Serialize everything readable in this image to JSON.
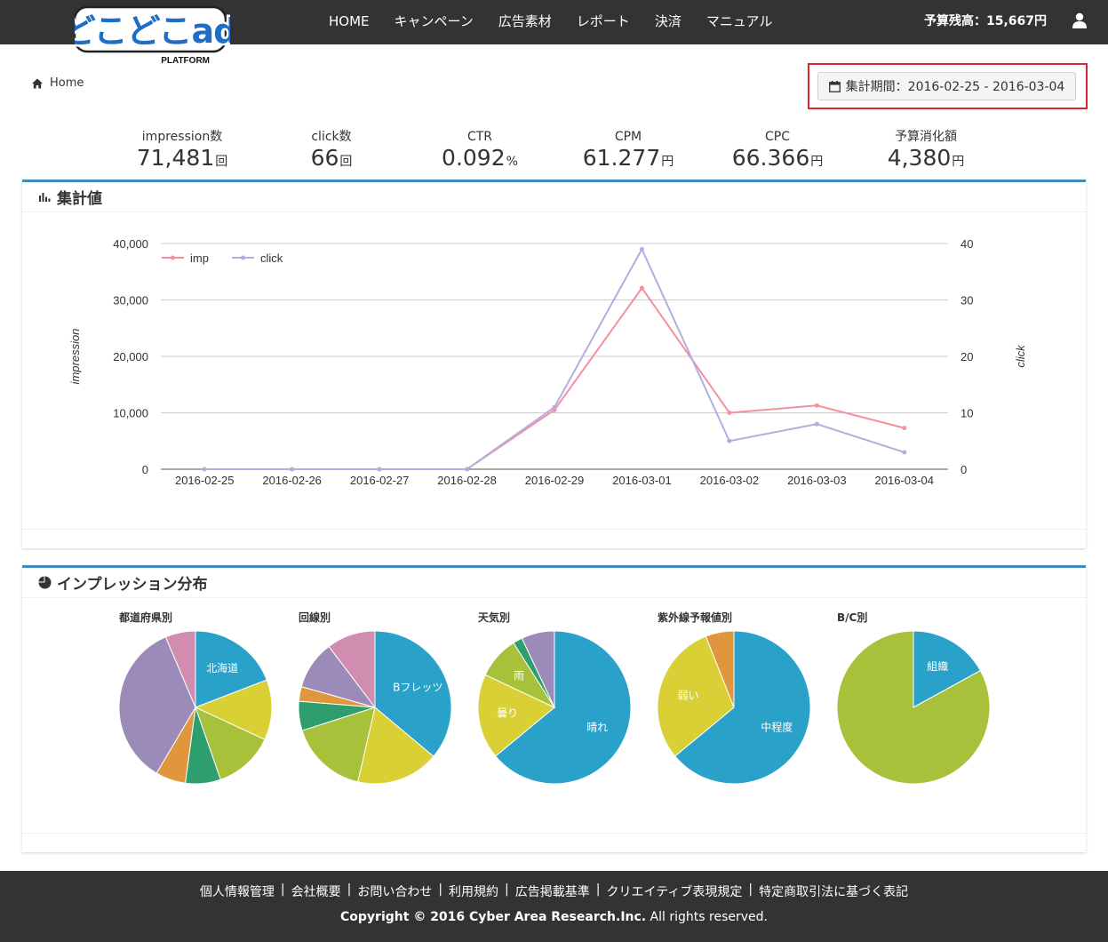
{
  "logo": {
    "main": "どこどこad",
    "sub": "PLATFORM"
  },
  "nav": {
    "items": [
      "HOME",
      "キャンペーン",
      "広告素材",
      "レポート",
      "決済",
      "マニュアル"
    ],
    "budget": "予算残高：15,667円"
  },
  "breadcrumb": {
    "home": "Home"
  },
  "date_range": {
    "label": "集計期間：2016-02-25 - 2016-03-04"
  },
  "stats": [
    {
      "label": "impression数",
      "value": "71,481",
      "unit": "回"
    },
    {
      "label": "click数",
      "value": "66",
      "unit": "回"
    },
    {
      "label": "CTR",
      "value": "0.092",
      "unit": "%"
    },
    {
      "label": "CPM",
      "value": "61.277",
      "unit": "円"
    },
    {
      "label": "CPC",
      "value": "66.366",
      "unit": "円"
    },
    {
      "label": "予算消化額",
      "value": "4,380",
      "unit": "円"
    }
  ],
  "summary_panel": {
    "title": "集計値"
  },
  "distribution_panel": {
    "title": "インプレッション分布"
  },
  "colors": {
    "imp": "#f4919f",
    "click": "#b3aee0",
    "accent": "#3c8dbc",
    "pie": [
      "#2aa1c9",
      "#d8d035",
      "#a8c13a",
      "#2e9e6e",
      "#e0963d",
      "#9b8bb9",
      "#d08db0"
    ]
  },
  "chart_data": [
    {
      "type": "line",
      "x": [
        "2016-02-25",
        "2016-02-26",
        "2016-02-27",
        "2016-02-28",
        "2016-02-29",
        "2016-03-01",
        "2016-03-02",
        "2016-03-03",
        "2016-03-04"
      ],
      "series": [
        {
          "name": "imp",
          "axis": "left",
          "values": [
            0,
            0,
            0,
            0,
            10500,
            32100,
            10000,
            11300,
            7300
          ]
        },
        {
          "name": "click",
          "axis": "right",
          "values": [
            0,
            0,
            0,
            0,
            11,
            39,
            5,
            8,
            3
          ]
        }
      ],
      "ylabel": "impression",
      "y2label": "click",
      "ylim": [
        0,
        40000
      ],
      "y2lim": [
        0,
        40
      ],
      "yticks": [
        "0",
        "10,000",
        "20,000",
        "30,000",
        "40,000"
      ],
      "y2ticks": [
        "0",
        "10",
        "20",
        "30",
        "40"
      ],
      "grid": true,
      "legend": "top-left"
    },
    {
      "type": "pie",
      "title": "都道府県別",
      "slices": [
        {
          "label": "北海道",
          "value": 18
        },
        {
          "label": "",
          "value": 12
        },
        {
          "label": "",
          "value": 12
        },
        {
          "label": "",
          "value": 7
        },
        {
          "label": "",
          "value": 6
        },
        {
          "label": "",
          "value": 33
        },
        {
          "label": "",
          "value": 6
        }
      ]
    },
    {
      "type": "pie",
      "title": "回線別",
      "slices": [
        {
          "label": "Bフレッツ",
          "value": 35
        },
        {
          "label": "",
          "value": 17
        },
        {
          "label": "",
          "value": 16
        },
        {
          "label": "",
          "value": 6
        },
        {
          "label": "",
          "value": 3
        },
        {
          "label": "",
          "value": 10
        },
        {
          "label": "",
          "value": 10
        }
      ]
    },
    {
      "type": "pie",
      "title": "天気別",
      "slices": [
        {
          "label": "晴れ",
          "value": 64
        },
        {
          "label": "曇り",
          "value": 18
        },
        {
          "label": "雨",
          "value": 9
        },
        {
          "label": "",
          "value": 2
        },
        {
          "label": "",
          "value": 7
        }
      ]
    },
    {
      "type": "pie",
      "title": "紫外線予報値別",
      "slices": [
        {
          "label": "中程度",
          "value": 64
        },
        {
          "label": "弱い",
          "value": 30
        },
        {
          "label": "",
          "value": 6
        }
      ]
    },
    {
      "type": "pie",
      "title": "B/C別",
      "slices": [
        {
          "label": "組織",
          "value": 17
        },
        {
          "label": "",
          "value": 83
        }
      ]
    }
  ],
  "footer": {
    "links": [
      "個人情報管理",
      "会社概要",
      "お問い合わせ",
      "利用規約",
      "広告掲載基準",
      "クリエイティブ表現規定",
      "特定商取引法に基づく表記"
    ],
    "copyright_bold": "Copyright © 2016 Cyber Area Research.Inc.",
    "copyright_rest": " All rights reserved."
  }
}
